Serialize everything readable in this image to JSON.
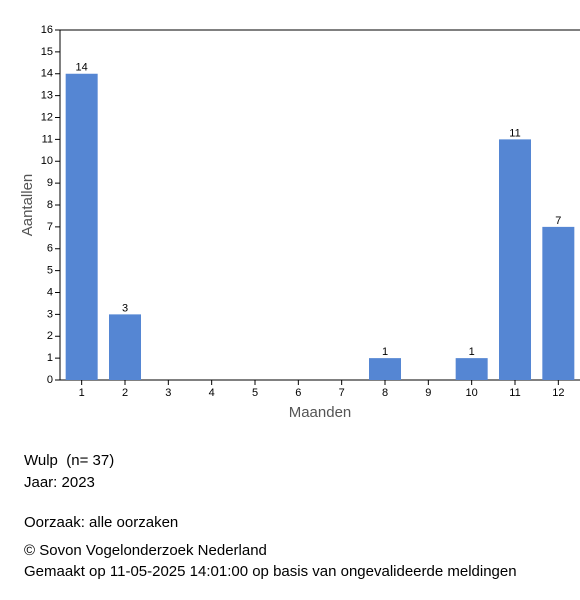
{
  "chart_data": {
    "type": "bar",
    "x_label": "Maanden",
    "y_label": "Aantallen",
    "categories": [
      "1",
      "2",
      "3",
      "4",
      "5",
      "6",
      "7",
      "8",
      "9",
      "10",
      "11",
      "12"
    ],
    "values": [
      14,
      3,
      0,
      0,
      0,
      0,
      0,
      1,
      0,
      1,
      11,
      7
    ],
    "color": "#5586d3",
    "ylim": [
      0,
      16
    ],
    "yticks": [
      0,
      1,
      2,
      3,
      4,
      5,
      6,
      7,
      8,
      9,
      10,
      11,
      12,
      13,
      14,
      15,
      16
    ],
    "grid": false
  },
  "info": {
    "species": "Wulp  (n= 37)",
    "year": "Jaar: 2023",
    "cause": "Oorzaak: alle oorzaken",
    "copyright": "© Sovon Vogelonderzoek Nederland",
    "made": "Gemaakt op 11-05-2025 14:01:00 op basis van ongevalideerde meldingen"
  }
}
